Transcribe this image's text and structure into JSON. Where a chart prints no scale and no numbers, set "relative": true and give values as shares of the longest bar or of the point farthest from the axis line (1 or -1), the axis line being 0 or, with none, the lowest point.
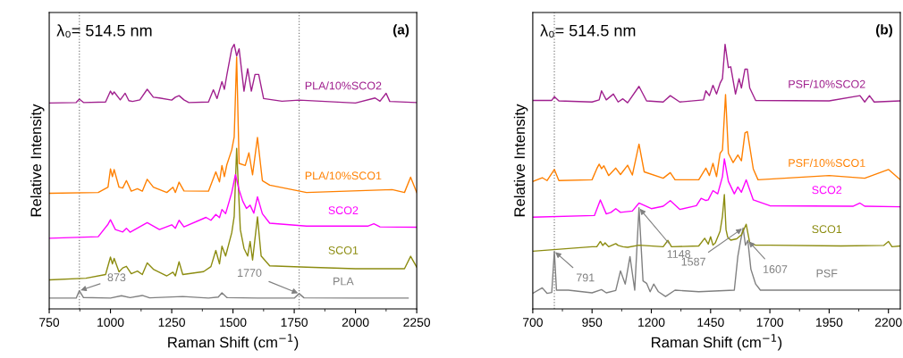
{
  "chart_data": [
    {
      "type": "line",
      "relative": true,
      "xlabel": "Raman Shift (cm$^{−1}$)",
      "ylabel": "Relative Intensity",
      "xlim": [
        750,
        2250
      ],
      "xticks": [
        750,
        1000,
        1250,
        1500,
        1750,
        2000,
        2250
      ],
      "grid": false,
      "legend": false,
      "marker": "none",
      "line_style": "solid",
      "tick_labels": "x",
      "annotations": [
        "λ₀= 514.5 nm",
        "(a)",
        {
          "text": "873",
          "x": 873,
          "y": 0.069
        },
        {
          "text": "1770",
          "x": 1770,
          "y": 0.058
        }
      ],
      "ref_lines": [
        {
          "axis": "x",
          "value": 873,
          "label": null,
          "color": "#808080",
          "line_style": "dotted"
        },
        {
          "axis": "x",
          "value": 1770,
          "label": null,
          "color": "#808080",
          "line_style": "dotted"
        }
      ],
      "series": [
        {
          "name": "PLA",
          "color": "#808080",
          "x": [
            750,
            860,
            873,
            890,
            1000,
            1045,
            1080,
            1130,
            1160,
            1295,
            1400,
            1440,
            1455,
            1475,
            1600,
            1750,
            1770,
            1790,
            2000,
            2215
          ],
          "values": [
            0.041,
            0.041,
            0.069,
            0.043,
            0.041,
            0.05,
            0.043,
            0.051,
            0.042,
            0.047,
            0.041,
            0.045,
            0.061,
            0.043,
            0.041,
            0.041,
            0.058,
            0.042,
            0.041,
            0.041
          ]
        },
        {
          "name": "SCO1",
          "color": "#8c8c10",
          "x": [
            750,
            900,
            980,
            1000,
            1008,
            1015,
            1035,
            1050,
            1065,
            1085,
            1110,
            1130,
            1150,
            1175,
            1230,
            1255,
            1265,
            1280,
            1295,
            1380,
            1410,
            1430,
            1445,
            1455,
            1470,
            1495,
            1505,
            1515,
            1530,
            1545,
            1560,
            1570,
            1580,
            1600,
            1615,
            1650,
            1800,
            2000,
            2200,
            2225,
            2250
          ],
          "values": [
            0.11,
            0.116,
            0.13,
            0.196,
            0.17,
            0.191,
            0.14,
            0.155,
            0.161,
            0.133,
            0.143,
            0.13,
            0.174,
            0.15,
            0.125,
            0.139,
            0.125,
            0.178,
            0.13,
            0.141,
            0.16,
            0.221,
            0.17,
            0.237,
            0.2,
            0.288,
            0.35,
            0.607,
            0.3,
            0.229,
            0.2,
            0.255,
            0.185,
            0.348,
            0.2,
            0.163,
            0.158,
            0.152,
            0.152,
            0.199,
            0.158
          ]
        },
        {
          "name": "SCO2",
          "color": "#ff00ff",
          "x": [
            750,
            950,
            990,
            1000,
            1020,
            1050,
            1065,
            1080,
            1150,
            1200,
            1250,
            1265,
            1280,
            1300,
            1390,
            1410,
            1430,
            1445,
            1455,
            1470,
            1495,
            1510,
            1525,
            1540,
            1555,
            1570,
            1585,
            1600,
            1620,
            1650,
            1800,
            2050,
            2075,
            2100,
            2250
          ],
          "values": [
            0.267,
            0.273,
            0.32,
            0.337,
            0.3,
            0.291,
            0.305,
            0.29,
            0.326,
            0.3,
            0.318,
            0.305,
            0.335,
            0.31,
            0.346,
            0.335,
            0.357,
            0.345,
            0.376,
            0.36,
            0.44,
            0.507,
            0.45,
            0.407,
            0.38,
            0.392,
            0.362,
            0.424,
            0.36,
            0.324,
            0.313,
            0.313,
            0.322,
            0.31,
            0.309
          ]
        },
        {
          "name": "PLA/10%SCO1",
          "color": "#ff8000",
          "x": [
            750,
            950,
            990,
            1000,
            1008,
            1015,
            1035,
            1050,
            1065,
            1085,
            1110,
            1130,
            1150,
            1175,
            1230,
            1255,
            1265,
            1280,
            1300,
            1400,
            1430,
            1445,
            1455,
            1465,
            1475,
            1495,
            1505,
            1515,
            1525,
            1550,
            1565,
            1580,
            1600,
            1620,
            1650,
            1800,
            2150,
            2200,
            2225,
            2250
          ],
          "values": [
            0.437,
            0.44,
            0.46,
            0.529,
            0.5,
            0.527,
            0.46,
            0.457,
            0.485,
            0.445,
            0.454,
            0.445,
            0.49,
            0.46,
            0.44,
            0.46,
            0.44,
            0.479,
            0.446,
            0.445,
            0.518,
            0.48,
            0.542,
            0.5,
            0.545,
            0.601,
            0.65,
            0.952,
            0.55,
            0.542,
            0.59,
            0.507,
            0.648,
            0.485,
            0.468,
            0.44,
            0.451,
            0.44,
            0.498,
            0.44
          ]
        },
        {
          "name": "PLA/10%SCO2",
          "color": "#a0208e",
          "x": [
            750,
            860,
            873,
            890,
            980,
            1000,
            1008,
            1015,
            1040,
            1060,
            1075,
            1090,
            1120,
            1150,
            1175,
            1200,
            1250,
            1265,
            1280,
            1300,
            1320,
            1400,
            1420,
            1435,
            1455,
            1465,
            1475,
            1495,
            1505,
            1515,
            1525,
            1545,
            1560,
            1575,
            1590,
            1605,
            1625,
            1700,
            1770,
            2000,
            2080,
            2100,
            2125,
            2140,
            2250
          ],
          "values": [
            0.778,
            0.78,
            0.793,
            0.78,
            0.782,
            0.823,
            0.81,
            0.82,
            0.79,
            0.815,
            0.787,
            0.784,
            0.79,
            0.83,
            0.8,
            0.797,
            0.789,
            0.8,
            0.806,
            0.79,
            0.78,
            0.782,
            0.828,
            0.795,
            0.859,
            0.83,
            0.884,
            0.983,
            1.0,
            0.956,
            0.983,
            0.823,
            0.908,
            0.823,
            0.886,
            0.886,
            0.795,
            0.785,
            0.789,
            0.778,
            0.797,
            0.785,
            0.815,
            0.784,
            0.78
          ]
        }
      ]
    },
    {
      "type": "line",
      "relative": true,
      "xlabel": "Raman Shift (cm$^{−1}$)",
      "ylabel": "Relative Intensity",
      "xlim": [
        700,
        2250
      ],
      "xticks": [
        700,
        950,
        1200,
        1450,
        1700,
        1950,
        2200
      ],
      "grid": false,
      "legend": false,
      "marker": "none",
      "line_style": "solid",
      "tick_labels": "x",
      "annotations": [
        "λ₀= 514.5 nm",
        "(b)",
        {
          "text": "791",
          "x": 791,
          "y": 0.218
        },
        {
          "text": "1148",
          "x": 1148,
          "y": 0.382
        },
        {
          "text": "1587",
          "x": 1587,
          "y": 0.306
        },
        {
          "text": "1607",
          "x": 1607,
          "y": 0.259
        }
      ],
      "ref_lines": [
        {
          "axis": "x",
          "value": 791,
          "label": null,
          "color": "#808080",
          "line_style": "dotted"
        }
      ],
      "series": [
        {
          "name": "PSF",
          "color": "#808080",
          "x": [
            700,
            740,
            760,
            780,
            791,
            800,
            850,
            950,
            990,
            1010,
            1050,
            1070,
            1090,
            1110,
            1130,
            1148,
            1165,
            1180,
            1195,
            1210,
            1230,
            1260,
            1300,
            1400,
            1550,
            1565,
            1575,
            1587,
            1597,
            1607,
            1620,
            1640,
            1660,
            2000,
            2250
          ],
          "values": [
            0.059,
            0.08,
            0.059,
            0.062,
            0.218,
            0.071,
            0.071,
            0.061,
            0.073,
            0.061,
            0.07,
            0.144,
            0.094,
            0.198,
            0.071,
            0.382,
            0.106,
            0.097,
            0.065,
            0.094,
            0.065,
            0.047,
            0.071,
            0.065,
            0.071,
            0.2,
            0.25,
            0.306,
            0.241,
            0.259,
            0.15,
            0.094,
            0.071,
            0.071,
            0.071
          ]
        },
        {
          "name": "SCO1",
          "color": "#8c8c10",
          "x": [
            700,
            950,
            970,
            985,
            995,
            1005,
            1020,
            1050,
            1060,
            1080,
            1100,
            1148,
            1250,
            1270,
            1285,
            1400,
            1425,
            1440,
            1450,
            1460,
            1470,
            1490,
            1500,
            1508,
            1515,
            1522,
            1535,
            1560,
            1580,
            1600,
            1615,
            1640,
            1700,
            2000,
            2180,
            2200,
            2215,
            2250
          ],
          "values": [
            0.218,
            0.235,
            0.235,
            0.255,
            0.24,
            0.25,
            0.235,
            0.247,
            0.24,
            0.235,
            0.233,
            0.241,
            0.235,
            0.259,
            0.235,
            0.238,
            0.267,
            0.245,
            0.273,
            0.241,
            0.25,
            0.294,
            0.35,
            0.432,
            0.3,
            0.271,
            0.26,
            0.265,
            0.28,
            0.32,
            0.25,
            0.241,
            0.241,
            0.238,
            0.24,
            0.255,
            0.235,
            0.238
          ]
        },
        {
          "name": "SCO2",
          "color": "#ff00ff",
          "x": [
            700,
            960,
            985,
            1010,
            1030,
            1050,
            1070,
            1120,
            1148,
            1200,
            1250,
            1280,
            1320,
            1390,
            1410,
            1430,
            1440,
            1460,
            1480,
            1500,
            1508,
            1525,
            1550,
            1565,
            1580,
            1600,
            1630,
            1700,
            2050,
            2080,
            2100,
            2250
          ],
          "values": [
            0.347,
            0.353,
            0.412,
            0.359,
            0.365,
            0.379,
            0.365,
            0.37,
            0.4,
            0.379,
            0.388,
            0.409,
            0.376,
            0.39,
            0.418,
            0.41,
            0.412,
            0.447,
            0.435,
            0.5,
            0.567,
            0.482,
            0.435,
            0.461,
            0.441,
            0.488,
            0.412,
            0.39,
            0.388,
            0.4,
            0.388,
            0.386
          ]
        },
        {
          "name": "PSF/10%SCO1",
          "color": "#ff8000",
          "x": [
            700,
            740,
            760,
            791,
            810,
            950,
            970,
            980,
            990,
            1000,
            1020,
            1050,
            1070,
            1100,
            1120,
            1148,
            1170,
            1250,
            1280,
            1300,
            1400,
            1430,
            1445,
            1460,
            1475,
            1490,
            1500,
            1513,
            1525,
            1545,
            1565,
            1580,
            1595,
            1605,
            1630,
            1650,
            1950,
            2100,
            2200,
            2250
          ],
          "values": [
            0.482,
            0.496,
            0.485,
            0.527,
            0.485,
            0.488,
            0.53,
            0.547,
            0.53,
            0.541,
            0.504,
            0.532,
            0.508,
            0.543,
            0.506,
            0.623,
            0.518,
            0.494,
            0.515,
            0.488,
            0.488,
            0.532,
            0.504,
            0.55,
            0.5,
            0.588,
            0.6,
            0.81,
            0.588,
            0.553,
            0.582,
            0.56,
            0.665,
            0.67,
            0.529,
            0.488,
            0.504,
            0.494,
            0.527,
            0.488
          ]
        },
        {
          "name": "PSF/10%SCO2",
          "color": "#a0208e",
          "x": [
            700,
            780,
            791,
            810,
            950,
            980,
            990,
            1010,
            1040,
            1060,
            1080,
            1100,
            1148,
            1180,
            1250,
            1280,
            1320,
            1420,
            1430,
            1445,
            1460,
            1475,
            1490,
            1500,
            1511,
            1525,
            1535,
            1555,
            1570,
            1580,
            1595,
            1605,
            1615,
            1640,
            1950,
            2080,
            2100,
            2120,
            2140,
            2250
          ],
          "values": [
            0.788,
            0.788,
            0.802,
            0.786,
            0.782,
            0.79,
            0.824,
            0.79,
            0.812,
            0.782,
            0.794,
            0.779,
            0.841,
            0.786,
            0.782,
            0.806,
            0.782,
            0.79,
            0.824,
            0.806,
            0.845,
            0.812,
            0.853,
            0.87,
            1.0,
            0.912,
            0.915,
            0.812,
            0.87,
            0.835,
            0.906,
            0.906,
            0.835,
            0.788,
            0.786,
            0.806,
            0.782,
            0.806,
            0.782,
            0.786
          ]
        }
      ]
    }
  ]
}
